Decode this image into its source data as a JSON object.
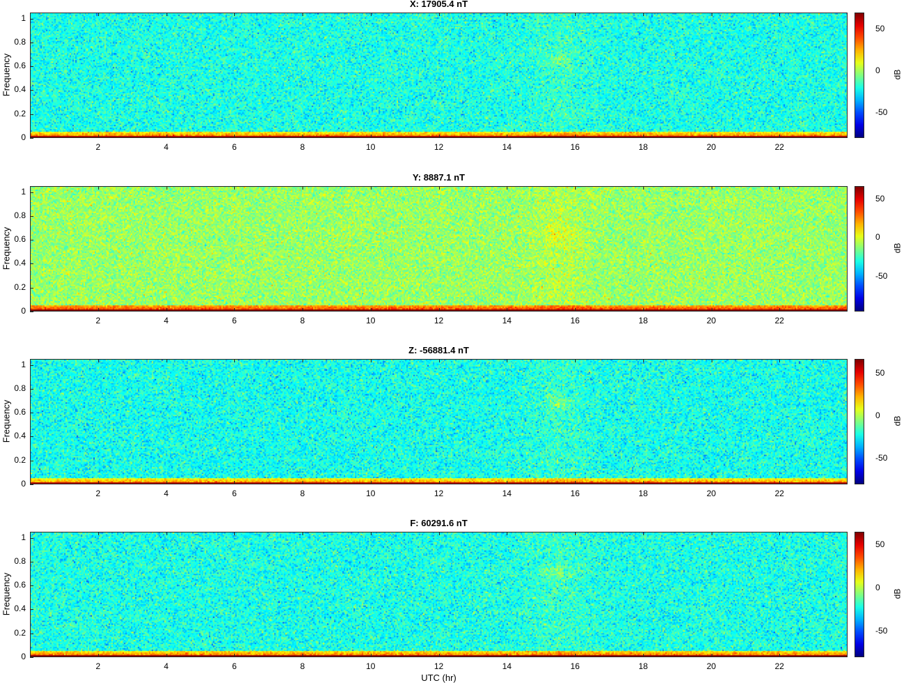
{
  "chart_data": [
    {
      "type": "heatmap",
      "title": "X: 17905.4 nT",
      "ylabel": "Frequency",
      "xlabel": "",
      "xlim": [
        0,
        24
      ],
      "ylim": [
        0,
        1.05
      ],
      "xticks": [
        "2",
        "4",
        "6",
        "8",
        "10",
        "12",
        "14",
        "16",
        "18",
        "20",
        "22"
      ],
      "yticks": [
        "0",
        "0.2",
        "0.4",
        "0.6",
        "0.8",
        "1"
      ],
      "colorbar": {
        "label": "dB",
        "range": [
          -80,
          70
        ],
        "ticks": [
          "50",
          "0",
          "-50"
        ]
      },
      "colormap": "jet",
      "background_db": -20,
      "lowfreq_db": 40,
      "feature_time_hr": 15.5,
      "feature_freq": 0.65
    },
    {
      "type": "heatmap",
      "title": "Y: 8887.1 nT",
      "ylabel": "Frequency",
      "xlabel": "",
      "xlim": [
        0,
        24
      ],
      "ylim": [
        0,
        1.05
      ],
      "xticks": [
        "2",
        "4",
        "6",
        "8",
        "10",
        "12",
        "14",
        "16",
        "18",
        "20",
        "22"
      ],
      "yticks": [
        "0",
        "0.2",
        "0.4",
        "0.6",
        "0.8",
        "1"
      ],
      "colorbar": {
        "label": "dB",
        "range": [
          -95,
          67
        ],
        "ticks": [
          "50",
          "0",
          "-50"
        ]
      },
      "colormap": "jet",
      "background_db": -10,
      "lowfreq_db": 45,
      "feature_time_hr": 15.5,
      "feature_freq": 0.65
    },
    {
      "type": "heatmap",
      "title": "Z: -56881.4 nT",
      "ylabel": "Frequency",
      "xlabel": "",
      "xlim": [
        0,
        24
      ],
      "ylim": [
        0,
        1.05
      ],
      "xticks": [
        "2",
        "4",
        "6",
        "8",
        "10",
        "12",
        "14",
        "16",
        "18",
        "20",
        "22"
      ],
      "yticks": [
        "0",
        "0.2",
        "0.4",
        "0.6",
        "0.8",
        "1"
      ],
      "colorbar": {
        "label": "dB",
        "range": [
          -80,
          67
        ],
        "ticks": [
          "50",
          "0",
          "-50"
        ]
      },
      "colormap": "jet",
      "background_db": -22,
      "lowfreq_db": 35,
      "feature_time_hr": 15.5,
      "feature_freq": 0.7
    },
    {
      "type": "heatmap",
      "title": "F: 60291.6 nT",
      "ylabel": "Frequency",
      "xlabel": "UTC (hr)",
      "xlim": [
        0,
        24
      ],
      "ylim": [
        0,
        1.05
      ],
      "xticks": [
        "2",
        "4",
        "6",
        "8",
        "10",
        "12",
        "14",
        "16",
        "18",
        "20",
        "22"
      ],
      "yticks": [
        "0",
        "0.2",
        "0.4",
        "0.6",
        "0.8",
        "1"
      ],
      "colorbar": {
        "label": "dB",
        "range": [
          -80,
          65
        ],
        "ticks": [
          "50",
          "0",
          "-50"
        ]
      },
      "colormap": "jet",
      "background_db": -22,
      "lowfreq_db": 38,
      "feature_time_hr": 15.5,
      "feature_freq": 0.72
    }
  ]
}
